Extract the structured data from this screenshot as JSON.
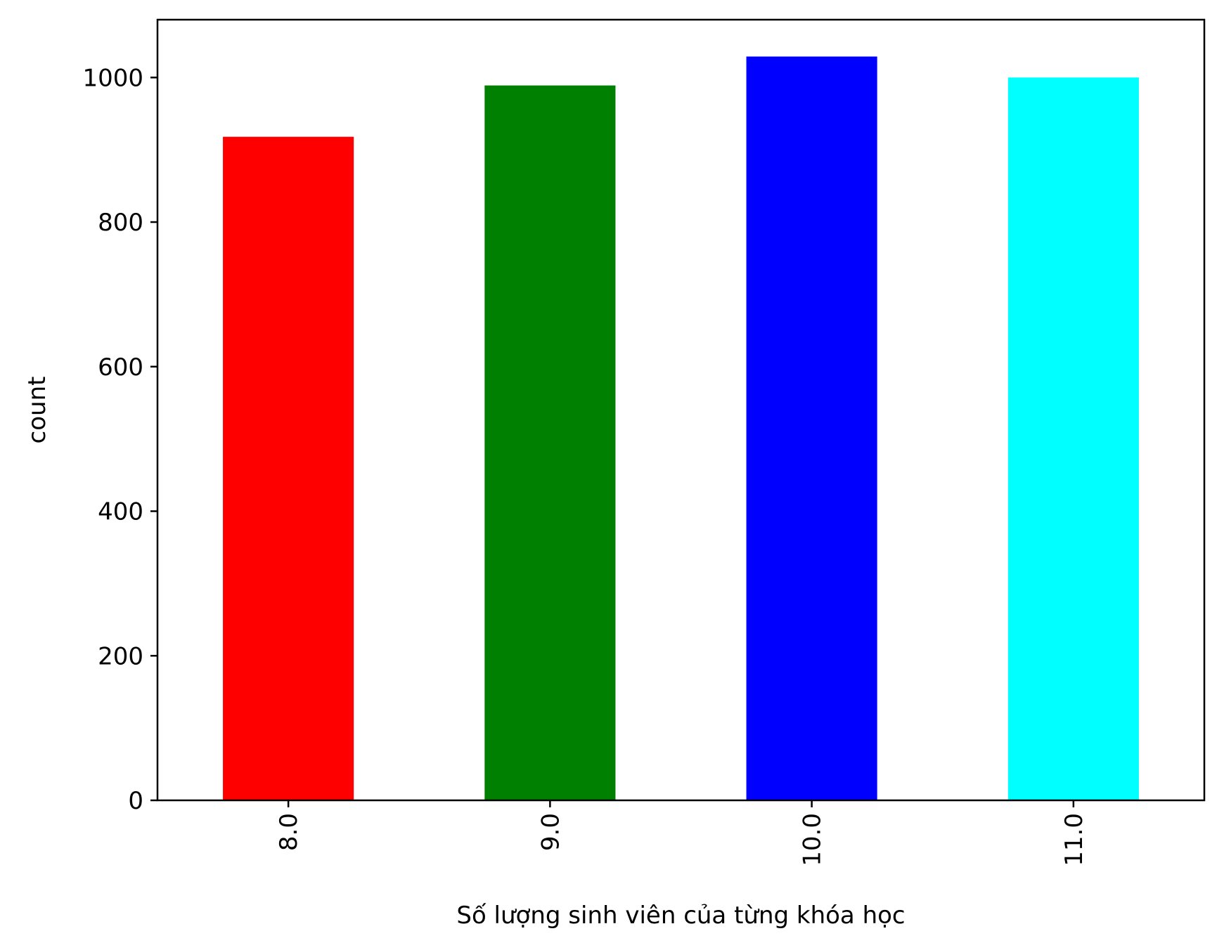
{
  "chart_data": {
    "type": "bar",
    "categories": [
      "8.0",
      "9.0",
      "10.0",
      "11.0"
    ],
    "values": [
      918,
      989,
      1029,
      1000
    ],
    "colors": [
      "#ff0000",
      "#008000",
      "#0000ff",
      "#00ffff"
    ],
    "title": "",
    "xlabel": "Số lượng sinh viên của từng khóa học",
    "ylabel": "count",
    "ylim": [
      0,
      1080
    ],
    "yticks": [
      0,
      200,
      400,
      600,
      800,
      1000
    ],
    "ytick_labels": [
      "0",
      "200",
      "400",
      "600",
      "800",
      "1000"
    ],
    "xtick_rotation": "vertical",
    "grid": false,
    "legend": "none"
  }
}
